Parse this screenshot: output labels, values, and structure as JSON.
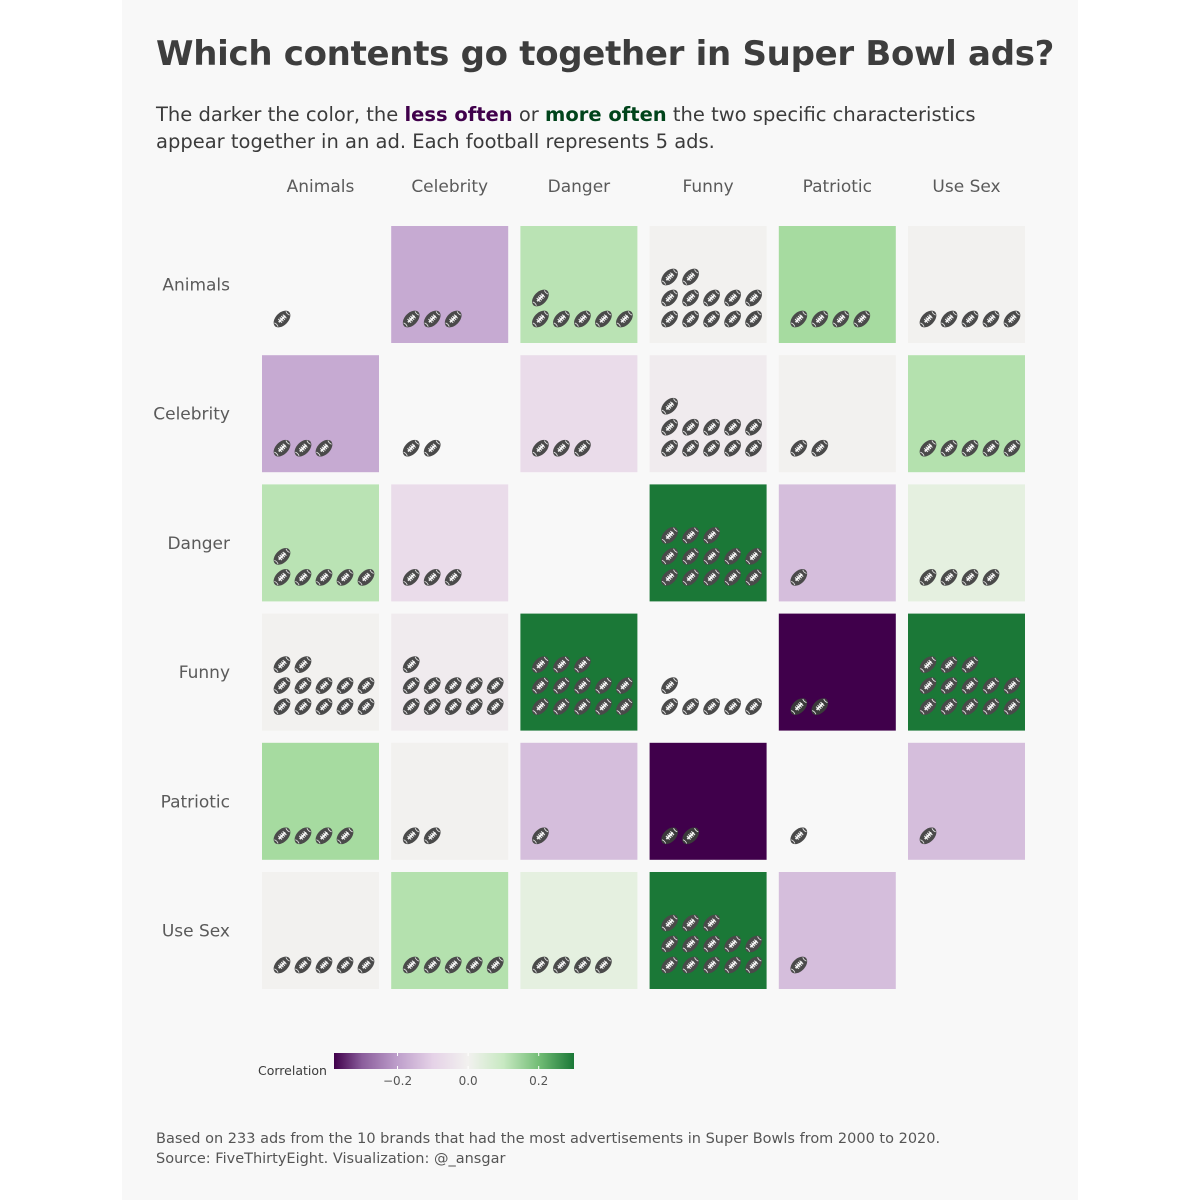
{
  "title": "Which contents go together in Super Bowl ads?",
  "subtitle": {
    "part1": "The darker the color, the ",
    "less": "less often",
    "or": " or ",
    "more": "more often",
    "part2": " the two specific characteristics appear together in an ad. Each football represents 5 ads."
  },
  "colors": {
    "less": "#40004b",
    "more": "#00441b",
    "football": "#4a4a4a",
    "background": "#f8f8f8"
  },
  "icon": "football-icon",
  "caption": {
    "line1": "Based on 233 ads from the 10 brands that had the most advertisements in Super Bowls from 2000 to 2020.",
    "line2": "Source: FiveThirtyEight. Visualization: @_ansgar"
  },
  "chart_data": {
    "type": "heatmap",
    "columns": [
      "Animals",
      "Celebrity",
      "Danger",
      "Funny",
      "Patriotic",
      "Use Sex"
    ],
    "rows": [
      "Animals",
      "Celebrity",
      "Danger",
      "Funny",
      "Patriotic",
      "Use Sex"
    ],
    "football_unit_ads": 5,
    "cells": [
      {
        "row": "Animals",
        "col": "Animals",
        "correlation": null,
        "footballs": 1
      },
      {
        "row": "Animals",
        "col": "Celebrity",
        "correlation": -0.18,
        "footballs": 3
      },
      {
        "row": "Animals",
        "col": "Danger",
        "correlation": 0.12,
        "footballs": 6
      },
      {
        "row": "Animals",
        "col": "Funny",
        "correlation": 0.0,
        "footballs": 12
      },
      {
        "row": "Animals",
        "col": "Patriotic",
        "correlation": 0.15,
        "footballs": 4
      },
      {
        "row": "Animals",
        "col": "Use Sex",
        "correlation": 0.0,
        "footballs": 5
      },
      {
        "row": "Celebrity",
        "col": "Animals",
        "correlation": -0.18,
        "footballs": 3
      },
      {
        "row": "Celebrity",
        "col": "Celebrity",
        "correlation": null,
        "footballs": 2
      },
      {
        "row": "Celebrity",
        "col": "Danger",
        "correlation": -0.07,
        "footballs": 3
      },
      {
        "row": "Celebrity",
        "col": "Funny",
        "correlation": -0.02,
        "footballs": 11
      },
      {
        "row": "Celebrity",
        "col": "Patriotic",
        "correlation": 0.0,
        "footballs": 2
      },
      {
        "row": "Celebrity",
        "col": "Use Sex",
        "correlation": 0.13,
        "footballs": 5
      },
      {
        "row": "Danger",
        "col": "Animals",
        "correlation": 0.12,
        "footballs": 6
      },
      {
        "row": "Danger",
        "col": "Celebrity",
        "correlation": -0.07,
        "footballs": 3
      },
      {
        "row": "Danger",
        "col": "Danger",
        "correlation": null,
        "footballs": 0
      },
      {
        "row": "Danger",
        "col": "Funny",
        "correlation": 0.3,
        "footballs": 13
      },
      {
        "row": "Danger",
        "col": "Patriotic",
        "correlation": -0.14,
        "footballs": 1
      },
      {
        "row": "Danger",
        "col": "Use Sex",
        "correlation": 0.04,
        "footballs": 4
      },
      {
        "row": "Funny",
        "col": "Animals",
        "correlation": 0.0,
        "footballs": 12
      },
      {
        "row": "Funny",
        "col": "Celebrity",
        "correlation": -0.02,
        "footballs": 11
      },
      {
        "row": "Funny",
        "col": "Danger",
        "correlation": 0.3,
        "footballs": 13
      },
      {
        "row": "Funny",
        "col": "Funny",
        "correlation": null,
        "footballs": 6
      },
      {
        "row": "Funny",
        "col": "Patriotic",
        "correlation": -0.38,
        "footballs": 2
      },
      {
        "row": "Funny",
        "col": "Use Sex",
        "correlation": 0.3,
        "footballs": 13
      },
      {
        "row": "Patriotic",
        "col": "Animals",
        "correlation": 0.15,
        "footballs": 4
      },
      {
        "row": "Patriotic",
        "col": "Celebrity",
        "correlation": 0.0,
        "footballs": 2
      },
      {
        "row": "Patriotic",
        "col": "Danger",
        "correlation": -0.14,
        "footballs": 1
      },
      {
        "row": "Patriotic",
        "col": "Funny",
        "correlation": -0.38,
        "footballs": 2
      },
      {
        "row": "Patriotic",
        "col": "Patriotic",
        "correlation": null,
        "footballs": 1
      },
      {
        "row": "Patriotic",
        "col": "Use Sex",
        "correlation": -0.14,
        "footballs": 1
      },
      {
        "row": "Use Sex",
        "col": "Animals",
        "correlation": 0.0,
        "footballs": 5
      },
      {
        "row": "Use Sex",
        "col": "Celebrity",
        "correlation": 0.13,
        "footballs": 5
      },
      {
        "row": "Use Sex",
        "col": "Danger",
        "correlation": 0.04,
        "footballs": 4
      },
      {
        "row": "Use Sex",
        "col": "Funny",
        "correlation": 0.3,
        "footballs": 13
      },
      {
        "row": "Use Sex",
        "col": "Patriotic",
        "correlation": -0.14,
        "footballs": 1
      },
      {
        "row": "Use Sex",
        "col": "Use Sex",
        "correlation": null,
        "footballs": 0
      }
    ],
    "legend": {
      "title": "Correlation",
      "ticks": [
        -0.2,
        0.0,
        0.2
      ],
      "tick_labels": [
        "−0.2",
        "0.0",
        "0.2"
      ],
      "range": [
        -0.38,
        0.3
      ],
      "colors": [
        "#40004b",
        "#9970ab",
        "#e7d4e8",
        "#f7f7f7",
        "#d9f0d3",
        "#5aae61",
        "#1b7837"
      ]
    },
    "xlabel": "",
    "ylabel": ""
  }
}
